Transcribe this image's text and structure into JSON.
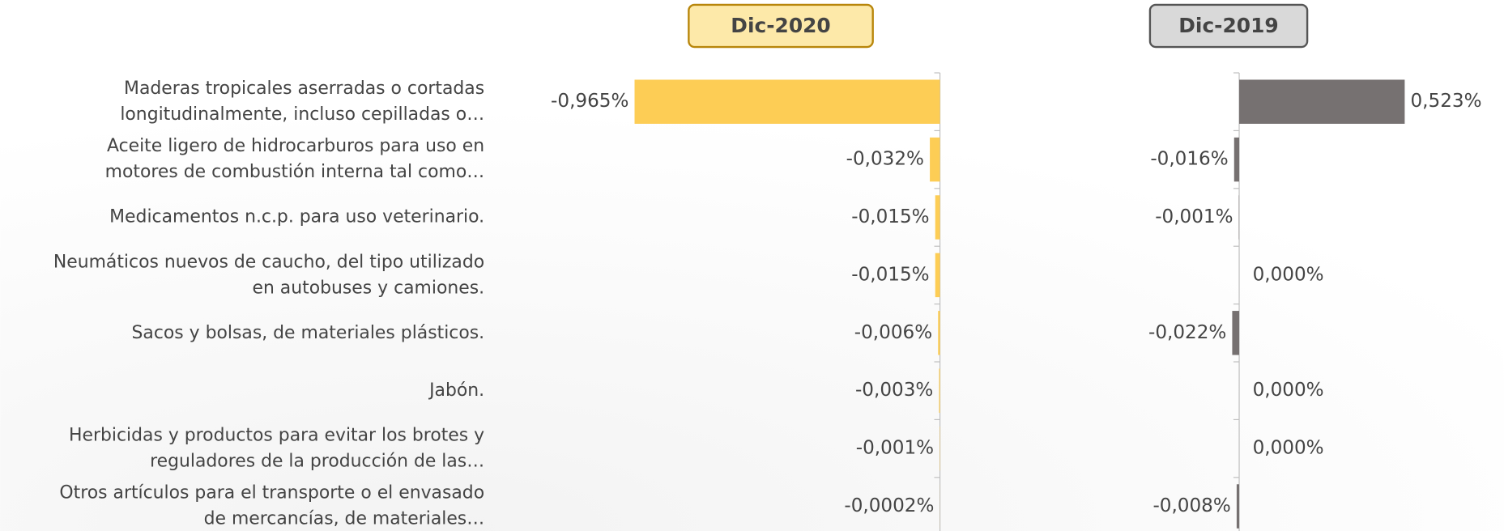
{
  "chart_data": {
    "type": "bar",
    "orientation": "horizontal",
    "categories": [
      "Maderas tropicales aserradas o cortadas longitudinalmente, incluso cepilladas o…",
      "Aceite ligero de hidrocarburos para uso en motores de combustión interna tal como…",
      "Medicamentos n.c.p. para uso veterinario.",
      "Neumáticos nuevos de caucho, del tipo utilizado en autobuses y camiones.",
      "Sacos y bolsas, de materiales plásticos.",
      "Jabón.",
      "Herbicidas y productos para evitar los brotes y reguladores de la producción de las…",
      "Otros artículos para el transporte o el envasado de mercancías, de materiales…"
    ],
    "xlim": [
      -1,
      1
    ],
    "series": [
      {
        "name": "Dic-2020",
        "color": "#fdcd55",
        "values": [
          -0.965,
          -0.032,
          -0.015,
          -0.015,
          -0.006,
          -0.003,
          -0.001,
          -0.0002
        ],
        "value_labels": [
          "-0,965%",
          "-0,032%",
          "-0,015%",
          "-0,015%",
          "-0,006%",
          "-0,003%",
          "-0,001%",
          "-0,0002%"
        ]
      },
      {
        "name": "Dic-2019",
        "color": "#767171",
        "values": [
          0.523,
          -0.016,
          -0.001,
          0,
          -0.022,
          0,
          0,
          -0.008
        ],
        "value_labels": [
          "0,523%",
          "-0,016%",
          "-0,001%",
          "0,000%",
          "-0,022%",
          "0,000%",
          "0,000%",
          "-0,008%"
        ]
      }
    ]
  }
}
